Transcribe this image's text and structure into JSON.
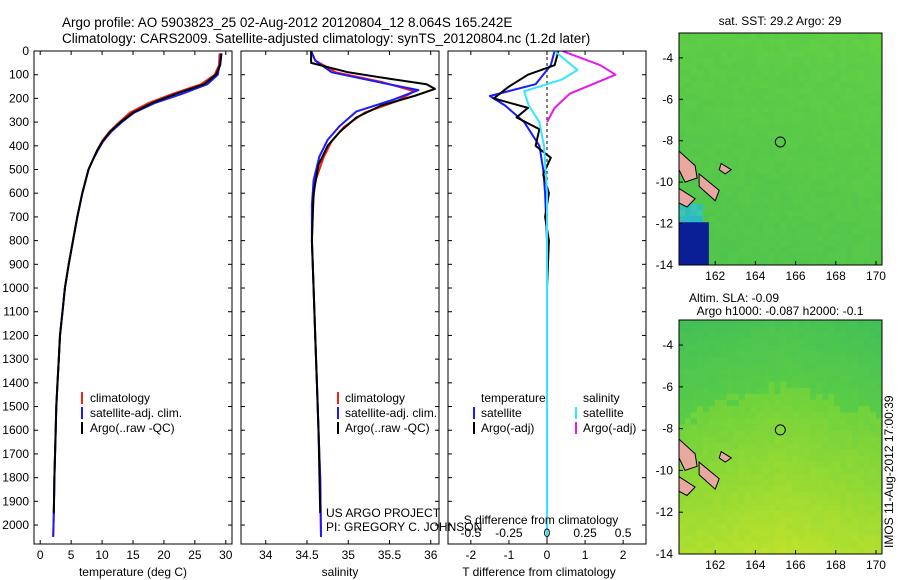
{
  "titles": {
    "line1": "Argo profile: AO 5903823_25 02-Aug-2012 20120804_12 8.064S 165.242E",
    "line2": "Climatology: CARS2009. Satellite-adjusted climatology: synTS_20120804.nc (1.2d later)"
  },
  "footer": {
    "project": "US ARGO PROJECT",
    "pi": "PI: GREGORY C. JOHNSON",
    "timestamp": "IMOS 11-Aug-2012 17:00:39"
  },
  "colors": {
    "climatology": "#ff1a1a",
    "satellite": "#1a1aff",
    "argo": "#000000",
    "satellite_s": "#33e6ff",
    "argo_s": "#e619e6",
    "land": "#e8a8a0"
  },
  "chart_data": [
    {
      "type": "line",
      "id": "temperature",
      "xlabel": "temperature (deg C)",
      "ylabel": "",
      "xlim": [
        -1,
        31
      ],
      "ylim": [
        2080,
        0
      ],
      "xticks": [
        0,
        5,
        10,
        15,
        20,
        25,
        30
      ],
      "yticks": [
        0,
        100,
        200,
        300,
        400,
        500,
        600,
        700,
        800,
        900,
        1000,
        1100,
        1200,
        1300,
        1400,
        1500,
        1600,
        1700,
        1800,
        1900,
        2000
      ],
      "legend": [
        "climatology",
        "satellite-adj. clim.",
        "Argo(..raw -QC)"
      ],
      "series": [
        {
          "name": "climatology",
          "color_key": "climatology",
          "x": [
            29.0,
            28.9,
            28.2,
            26.0,
            21.5,
            17.5,
            14.5,
            12.8,
            11.2,
            10.0,
            9.2,
            8.5,
            7.8,
            6.8,
            6.0,
            5.3,
            4.6,
            4.0,
            3.6,
            3.2,
            3.0,
            2.8,
            2.6,
            2.5,
            2.3,
            2.2,
            2.1
          ],
          "y": [
            10,
            60,
            100,
            140,
            180,
            220,
            260,
            300,
            340,
            380,
            420,
            460,
            500,
            600,
            700,
            800,
            900,
            1000,
            1100,
            1200,
            1300,
            1400,
            1500,
            1600,
            1800,
            1950,
            2050
          ]
        },
        {
          "name": "satellite-adj. clim.",
          "color_key": "satellite",
          "x": [
            29.2,
            29.0,
            28.7,
            27.0,
            23.0,
            18.5,
            15.2,
            13.2,
            11.5,
            10.2,
            9.3,
            8.5,
            7.8,
            6.8,
            6.0,
            5.3,
            4.6,
            4.0,
            3.6,
            3.2,
            3.0,
            2.8,
            2.6,
            2.5,
            2.3,
            2.2,
            2.1
          ],
          "y": [
            10,
            60,
            100,
            140,
            180,
            220,
            260,
            300,
            340,
            380,
            420,
            460,
            500,
            600,
            700,
            800,
            900,
            1000,
            1100,
            1200,
            1300,
            1400,
            1500,
            1600,
            1800,
            1950,
            2050
          ]
        },
        {
          "name": "Argo(..raw -QC)",
          "color_key": "argo",
          "x": [
            29.3,
            29.1,
            28.4,
            26.5,
            22.0,
            18.0,
            15.0,
            13.0,
            11.3,
            10.1,
            9.2,
            8.5,
            7.8,
            6.8,
            6.0,
            5.3,
            4.6,
            4.0,
            3.6,
            3.2,
            3.0,
            2.8,
            2.6,
            2.5,
            2.3,
            2.2
          ],
          "y": [
            10,
            60,
            100,
            140,
            180,
            220,
            260,
            300,
            340,
            380,
            420,
            460,
            500,
            600,
            700,
            800,
            900,
            1000,
            1100,
            1200,
            1300,
            1400,
            1500,
            1600,
            1800,
            1950
          ]
        }
      ]
    },
    {
      "type": "line",
      "id": "salinity",
      "xlabel": "salinity",
      "ylabel": "",
      "xlim": [
        33.7,
        36.1
      ],
      "ylim": [
        2080,
        0
      ],
      "xticks": [
        34,
        34.5,
        35,
        35.5,
        36
      ],
      "xticklabels": [
        "34",
        "34.5",
        "35",
        "35.5",
        "36"
      ],
      "legend": [
        "climatology",
        "satellite-adj. clim.",
        "Argo(..raw -QC)"
      ],
      "series": [
        {
          "name": "climatology",
          "color_key": "climatology",
          "x": [
            34.55,
            34.6,
            34.85,
            35.4,
            35.8,
            35.6,
            35.2,
            34.95,
            34.8,
            34.7,
            34.6,
            34.57,
            34.56,
            34.58,
            34.6,
            34.62,
            34.64,
            34.66,
            34.67
          ],
          "y": [
            0,
            40,
            90,
            130,
            170,
            210,
            260,
            320,
            380,
            450,
            550,
            650,
            800,
            1000,
            1200,
            1400,
            1600,
            1800,
            2050
          ]
        },
        {
          "name": "satellite-adj. clim.",
          "color_key": "satellite",
          "x": [
            34.55,
            34.6,
            34.8,
            35.35,
            35.85,
            35.55,
            35.1,
            34.9,
            34.75,
            34.65,
            34.58,
            34.56,
            34.56,
            34.58,
            34.6,
            34.62,
            34.64,
            34.66,
            34.67
          ],
          "y": [
            0,
            40,
            90,
            130,
            165,
            205,
            255,
            315,
            375,
            445,
            545,
            650,
            800,
            1000,
            1200,
            1400,
            1600,
            1800,
            2050
          ]
        },
        {
          "name": "Argo(..raw -QC)",
          "color_key": "argo",
          "x": [
            34.55,
            34.55,
            35.0,
            35.55,
            35.95,
            36.05,
            35.8,
            35.4,
            35.1,
            34.9,
            34.75,
            34.64,
            34.58,
            34.56,
            34.58,
            34.6,
            34.62,
            34.64,
            34.66
          ],
          "y": [
            0,
            50,
            90,
            120,
            140,
            160,
            190,
            230,
            280,
            340,
            400,
            480,
            600,
            800,
            1000,
            1200,
            1400,
            1600,
            1950
          ]
        }
      ]
    },
    {
      "type": "line",
      "id": "difference",
      "xlabel": "T difference from climatology",
      "xlabel2": "S difference from climatology",
      "xlim": [
        -2.6,
        2.6
      ],
      "ylim": [
        2080,
        0
      ],
      "xticks": [
        -2,
        -1,
        0,
        1,
        2
      ],
      "xticks_s": [
        -0.5,
        -0.25,
        0,
        0.25,
        0.5
      ],
      "xticklabels_s": [
        "-0.5",
        "-0.25",
        "0",
        "0.25",
        "0.5"
      ],
      "legend_left_title": "temperature",
      "legend_right_title": "salinity",
      "legend": [
        "satellite",
        "Argo(-adj)",
        "satellite",
        "Argo(-adj)"
      ],
      "series": [
        {
          "name": "satellite",
          "color_key": "satellite",
          "x": [
            0.2,
            0.1,
            -0.3,
            -1.5,
            -1.1,
            -0.6,
            -0.2,
            -0.1,
            -0.05,
            0.0,
            0.0,
            0.0,
            0.0,
            0.0
          ],
          "y": [
            0,
            60,
            140,
            190,
            230,
            300,
            400,
            500,
            600,
            800,
            1000,
            1400,
            1800,
            2050
          ]
        },
        {
          "name": "Argo(-adj)",
          "color_key": "argo",
          "x": [
            0.3,
            0.2,
            -0.5,
            -1.0,
            -1.4,
            -0.5,
            -0.8,
            -0.2,
            -0.3,
            0.1,
            -0.1,
            0.05,
            -0.05,
            0.05,
            0.0,
            0.0,
            0.0,
            0.0
          ],
          "y": [
            0,
            60,
            100,
            150,
            200,
            240,
            280,
            330,
            400,
            450,
            520,
            600,
            700,
            800,
            1000,
            1400,
            1800,
            1950
          ]
        },
        {
          "name": "satellite",
          "color_key": "satellite_s",
          "x": [
            0.05,
            0.2,
            0.1,
            -0.15,
            -0.12,
            -0.05,
            -0.02,
            0.0,
            0.0,
            0.0,
            0.0,
            0.0
          ],
          "y": [
            0,
            80,
            120,
            170,
            230,
            300,
            400,
            600,
            900,
            1300,
            1700,
            2050
          ]
        },
        {
          "name": "Argo(-adj)",
          "color_key": "argo_s",
          "x": [
            0.1,
            0.35,
            0.45,
            0.3,
            0.15,
            0.05,
            0.0
          ],
          "y": [
            0,
            60,
            100,
            140,
            180,
            240,
            300
          ]
        }
      ]
    },
    {
      "type": "heatmap",
      "id": "sst-map",
      "title": "sat. SST: 29.2 Argo: 29",
      "xlim": [
        160.2,
        170.3
      ],
      "ylim": [
        -14,
        -2.8
      ],
      "xticks": [
        162,
        164,
        166,
        168,
        170
      ],
      "yticks": [
        -4,
        -6,
        -8,
        -10,
        -12,
        -14
      ],
      "argo_position": [
        165.24,
        -8.06
      ]
    },
    {
      "type": "heatmap",
      "id": "sla-map",
      "title_line1": "Altim. SLA: -0.09",
      "title_line2": "Argo h1000: -0.087 h2000: -0.1",
      "xlim": [
        160.2,
        170.3
      ],
      "ylim": [
        -14,
        -2.8
      ],
      "xticks": [
        162,
        164,
        166,
        168,
        170
      ],
      "yticks": [
        -4,
        -6,
        -8,
        -10,
        -12,
        -14
      ],
      "argo_position": [
        165.24,
        -8.06
      ]
    }
  ]
}
